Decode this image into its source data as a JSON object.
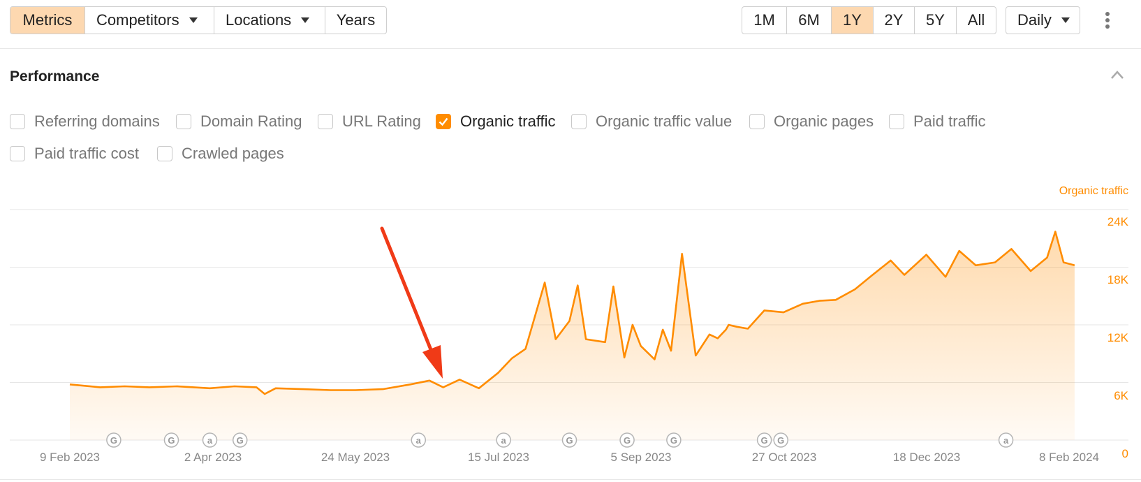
{
  "toolbar": {
    "tabs": [
      {
        "label": "Metrics",
        "active": true,
        "dropdown": false
      },
      {
        "label": "Competitors",
        "active": false,
        "dropdown": true
      },
      {
        "label": "Locations",
        "active": false,
        "dropdown": true
      },
      {
        "label": "Years",
        "active": false,
        "dropdown": false
      }
    ],
    "ranges": [
      {
        "label": "1M",
        "active": false
      },
      {
        "label": "6M",
        "active": false
      },
      {
        "label": "1Y",
        "active": true
      },
      {
        "label": "2Y",
        "active": false
      },
      {
        "label": "5Y",
        "active": false
      },
      {
        "label": "All",
        "active": false
      }
    ],
    "interval": "Daily",
    "menu_icon": "kebab-menu-icon"
  },
  "performance": {
    "title": "Performance",
    "collapse_icon": "chevron-up-icon",
    "metrics": [
      {
        "label": "Referring domains",
        "checked": false
      },
      {
        "label": "Domain Rating",
        "checked": false
      },
      {
        "label": "URL Rating",
        "checked": false
      },
      {
        "label": "Organic traffic",
        "checked": true
      },
      {
        "label": "Organic traffic value",
        "checked": false
      },
      {
        "label": "Organic pages",
        "checked": false
      },
      {
        "label": "Paid traffic",
        "checked": false
      },
      {
        "label": "Paid traffic cost",
        "checked": false
      },
      {
        "label": "Crawled pages",
        "checked": false
      }
    ]
  },
  "colors": {
    "accent": "#ff8c00",
    "active_button": "#fdd8b0",
    "arrow": "#f03a17",
    "grid": "#e6e6e6"
  },
  "chart_data": {
    "type": "area",
    "series": [
      {
        "name": "Organic traffic",
        "x": [
          "2023-02-09",
          "2023-02-20",
          "2023-03-01",
          "2023-03-10",
          "2023-03-20",
          "2023-04-01",
          "2023-04-10",
          "2023-04-18",
          "2023-04-21",
          "2023-04-25",
          "2023-05-05",
          "2023-05-15",
          "2023-05-24",
          "2023-06-03",
          "2023-06-13",
          "2023-06-20",
          "2023-06-25",
          "2023-07-01",
          "2023-07-08",
          "2023-07-15",
          "2023-07-20",
          "2023-07-25",
          "2023-08-01",
          "2023-08-05",
          "2023-08-10",
          "2023-08-13",
          "2023-08-16",
          "2023-08-23",
          "2023-08-26",
          "2023-08-30",
          "2023-09-02",
          "2023-09-05",
          "2023-09-10",
          "2023-09-13",
          "2023-09-16",
          "2023-09-20",
          "2023-09-25",
          "2023-09-30",
          "2023-10-03",
          "2023-10-06",
          "2023-10-07",
          "2023-10-10",
          "2023-10-14",
          "2023-10-20",
          "2023-10-27",
          "2023-11-03",
          "2023-11-09",
          "2023-11-15",
          "2023-11-22",
          "2023-11-28",
          "2023-12-05",
          "2023-12-10",
          "2023-12-18",
          "2023-12-25",
          "2023-12-30",
          "2024-01-05",
          "2024-01-12",
          "2024-01-18",
          "2024-01-25",
          "2024-01-31",
          "2024-02-03",
          "2024-02-06",
          "2024-02-10"
        ],
        "y": [
          5800,
          5500,
          5600,
          5500,
          5600,
          5400,
          5600,
          5500,
          4800,
          5400,
          5300,
          5200,
          5200,
          5300,
          5800,
          6200,
          5500,
          6300,
          5400,
          7000,
          8500,
          9500,
          16400,
          10500,
          12400,
          16100,
          10500,
          10200,
          16000,
          8600,
          12000,
          9800,
          8400,
          11500,
          9300,
          19400,
          8800,
          11000,
          10600,
          11500,
          12000,
          11800,
          11600,
          13500,
          13300,
          14200,
          14500,
          14600,
          15700,
          17100,
          18700,
          17200,
          19300,
          17000,
          19700,
          18200,
          18500,
          19900,
          17600,
          19000,
          21700,
          18500,
          18200
        ]
      }
    ],
    "ylabel": "Organic traffic",
    "ylim": [
      0,
      24000
    ],
    "yticks": [
      "24K",
      "18K",
      "12K",
      "6K",
      "0"
    ],
    "xticks": [
      "9 Feb 2023",
      "2 Apr 2023",
      "24 May 2023",
      "15 Jul 2023",
      "5 Sep 2023",
      "27 Oct 2023",
      "18 Dec 2023",
      "8 Feb 2024"
    ],
    "annotations": [
      {
        "date": "2023-02-25",
        "label": "G"
      },
      {
        "date": "2023-03-18",
        "label": "G"
      },
      {
        "date": "2023-04-01",
        "label": "a"
      },
      {
        "date": "2023-04-12",
        "label": "G"
      },
      {
        "date": "2023-06-16",
        "label": "a"
      },
      {
        "date": "2023-07-17",
        "label": "a"
      },
      {
        "date": "2023-08-10",
        "label": "G"
      },
      {
        "date": "2023-08-31",
        "label": "G"
      },
      {
        "date": "2023-09-17",
        "label": "G"
      },
      {
        "date": "2023-10-20",
        "label": "G"
      },
      {
        "date": "2023-10-26",
        "label": "G"
      },
      {
        "date": "2024-01-16",
        "label": "a"
      }
    ],
    "grid": true
  }
}
